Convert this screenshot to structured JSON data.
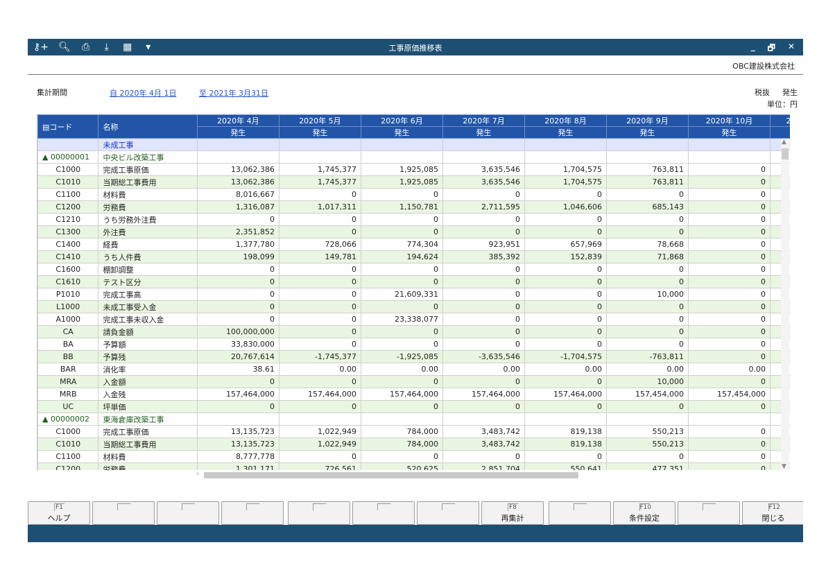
{
  "window": {
    "title": "工事原価推移表",
    "minimize": "_",
    "restore": "🗗",
    "close": "✕"
  },
  "toolbar_icons": [
    "key-search-icon",
    "preview-icon",
    "print-icon",
    "export-icon",
    "excel-icon",
    "dropdown-icon"
  ],
  "company": "OBC建設株式会社",
  "period": {
    "label": "集計期間",
    "from": "自 2020年 4月 1日",
    "to": "至 2021年 3月31日"
  },
  "tax": "税抜",
  "occurrence": "発生",
  "unit": "単位：円",
  "headers": {
    "code": "コード",
    "name": "名称",
    "months": [
      "2020年 4月",
      "2020年 5月",
      "2020年 6月",
      "2020年 7月",
      "2020年 8月",
      "2020年 9月",
      "2020年 10月",
      "2"
    ],
    "sub": [
      "発生",
      "発生",
      "発生",
      "発生",
      "発生",
      "発生",
      "発生",
      ""
    ]
  },
  "rows": [
    {
      "type": "sec",
      "code": "",
      "name": "未成工事",
      "values": [
        "",
        "",
        "",
        "",
        "",
        "",
        ""
      ]
    },
    {
      "type": "grp",
      "code": "▲ 00000001",
      "name": "中央ビル改築工事",
      "values": [
        "",
        "",
        "",
        "",
        "",
        "",
        ""
      ]
    },
    {
      "type": "row",
      "code": "C1000",
      "name": "完成工事原価",
      "values": [
        "13,062,386",
        "1,745,377",
        "1,925,085",
        "3,635,546",
        "1,704,575",
        "763,811",
        "0"
      ]
    },
    {
      "type": "alt",
      "code": "C1010",
      "name": "当期総工事費用",
      "values": [
        "13,062,386",
        "1,745,377",
        "1,925,085",
        "3,635,546",
        "1,704,575",
        "763,811",
        "0"
      ]
    },
    {
      "type": "row",
      "code": "C1100",
      "name": "材料費",
      "values": [
        "8,016,667",
        "0",
        "0",
        "0",
        "0",
        "0",
        "0"
      ]
    },
    {
      "type": "alt",
      "code": "C1200",
      "name": "労務費",
      "values": [
        "1,316,087",
        "1,017,311",
        "1,150,781",
        "2,711,595",
        "1,046,606",
        "685,143",
        "0"
      ]
    },
    {
      "type": "row",
      "code": "C1210",
      "name": "うち労務外注費",
      "values": [
        "0",
        "0",
        "0",
        "0",
        "0",
        "0",
        "0"
      ]
    },
    {
      "type": "alt",
      "code": "C1300",
      "name": "外注費",
      "values": [
        "2,351,852",
        "0",
        "0",
        "0",
        "0",
        "0",
        "0"
      ]
    },
    {
      "type": "row",
      "code": "C1400",
      "name": "経費",
      "values": [
        "1,377,780",
        "728,066",
        "774,304",
        "923,951",
        "657,969",
        "78,668",
        "0"
      ]
    },
    {
      "type": "alt",
      "code": "C1410",
      "name": "うち人件費",
      "values": [
        "198,099",
        "149,781",
        "194,624",
        "385,392",
        "152,839",
        "71,868",
        "0"
      ]
    },
    {
      "type": "row",
      "code": "C1600",
      "name": "棚卸調整",
      "values": [
        "0",
        "0",
        "0",
        "0",
        "0",
        "0",
        "0"
      ]
    },
    {
      "type": "alt",
      "code": "C1610",
      "name": "テスト区分",
      "values": [
        "0",
        "0",
        "0",
        "0",
        "0",
        "0",
        "0"
      ]
    },
    {
      "type": "row",
      "code": "P1010",
      "name": "完成工事高",
      "values": [
        "0",
        "0",
        "21,609,331",
        "0",
        "0",
        "10,000",
        "0"
      ]
    },
    {
      "type": "alt",
      "code": "L1000",
      "name": "未成工事受入金",
      "values": [
        "0",
        "0",
        "0",
        "0",
        "0",
        "0",
        "0"
      ]
    },
    {
      "type": "row",
      "code": "A1000",
      "name": "完成工事未収入金",
      "values": [
        "0",
        "0",
        "23,338,077",
        "0",
        "0",
        "0",
        "0"
      ]
    },
    {
      "type": "alt",
      "code": "CA",
      "name": "請負金額",
      "values": [
        "100,000,000",
        "0",
        "0",
        "0",
        "0",
        "0",
        "0"
      ]
    },
    {
      "type": "row",
      "code": "BA",
      "name": "予算額",
      "values": [
        "33,830,000",
        "0",
        "0",
        "0",
        "0",
        "0",
        "0"
      ]
    },
    {
      "type": "alt",
      "code": "BB",
      "name": "予算残",
      "values": [
        "20,767,614",
        "-1,745,377",
        "-1,925,085",
        "-3,635,546",
        "-1,704,575",
        "-763,811",
        "0"
      ]
    },
    {
      "type": "row",
      "code": "BAR",
      "name": "消化率",
      "values": [
        "38.61",
        "0.00",
        "0.00",
        "0.00",
        "0.00",
        "0.00",
        "0.00"
      ]
    },
    {
      "type": "alt",
      "code": "MRA",
      "name": "入金額",
      "values": [
        "0",
        "0",
        "0",
        "0",
        "0",
        "10,000",
        "0"
      ]
    },
    {
      "type": "row",
      "code": "MRB",
      "name": "入金残",
      "values": [
        "157,464,000",
        "157,464,000",
        "157,464,000",
        "157,464,000",
        "157,464,000",
        "157,454,000",
        "157,454,000"
      ]
    },
    {
      "type": "alt",
      "code": "UC",
      "name": "坪単価",
      "values": [
        "0",
        "0",
        "0",
        "0",
        "0",
        "0",
        "0"
      ]
    },
    {
      "type": "grp",
      "code": "▲ 00000002",
      "name": "東海倉庫改築工事",
      "values": [
        "",
        "",
        "",
        "",
        "",
        "",
        ""
      ]
    },
    {
      "type": "row",
      "code": "C1000",
      "name": "完成工事原価",
      "values": [
        "13,135,723",
        "1,022,949",
        "784,000",
        "3,483,742",
        "819,138",
        "550,213",
        "0"
      ]
    },
    {
      "type": "alt",
      "code": "C1010",
      "name": "当期総工事費用",
      "values": [
        "13,135,723",
        "1,022,949",
        "784,000",
        "3,483,742",
        "819,138",
        "550,213",
        "0"
      ]
    },
    {
      "type": "row",
      "code": "C1100",
      "name": "材料費",
      "values": [
        "8,777,778",
        "0",
        "0",
        "0",
        "0",
        "0",
        "0"
      ]
    },
    {
      "type": "alt",
      "code": "C1200",
      "name": "労務費",
      "values": [
        "1,301,171",
        "726,561",
        "520,625",
        "2,851,704",
        "550,641",
        "477,351",
        "0"
      ]
    },
    {
      "type": "row",
      "code": "C1210",
      "name": "うち労務外注費",
      "values": [
        "0",
        "0",
        "0",
        "0",
        "0",
        "0",
        "0"
      ]
    }
  ],
  "fkeys": [
    {
      "key": "F1",
      "label": "ヘルプ"
    },
    {
      "key": "",
      "label": ""
    },
    {
      "key": "",
      "label": ""
    },
    {
      "key": "",
      "label": ""
    },
    {
      "key": "",
      "label": ""
    },
    {
      "key": "",
      "label": ""
    },
    {
      "key": "",
      "label": ""
    },
    {
      "key": "F8",
      "label": "再集計"
    },
    {
      "key": "",
      "label": ""
    },
    {
      "key": "F10",
      "label": "条件設定"
    },
    {
      "key": "",
      "label": ""
    },
    {
      "key": "F12",
      "label": "閉じる"
    }
  ]
}
